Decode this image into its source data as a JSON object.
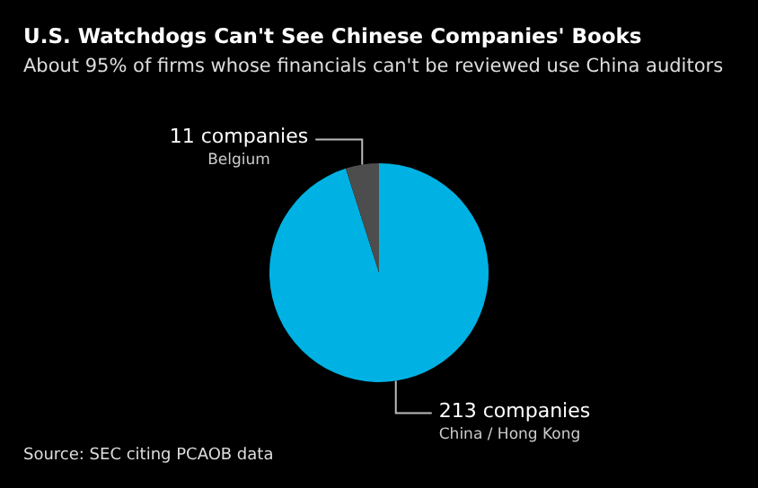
{
  "chart_data": {
    "type": "pie",
    "title": "U.S. Watchdogs Can't See Chinese Companies' Books",
    "subtitle": "About 95% of firms whose financials can't be reviewed use China auditors",
    "categories": [
      "China / Hong Kong",
      "Belgium"
    ],
    "values": [
      213,
      11
    ],
    "colors": [
      "#00b2e3",
      "#4d4d4d"
    ],
    "value_labels": [
      "213 companies",
      "11 companies"
    ],
    "legend": false,
    "annotations": [
      "Source: SEC citing PCAOB data"
    ]
  }
}
